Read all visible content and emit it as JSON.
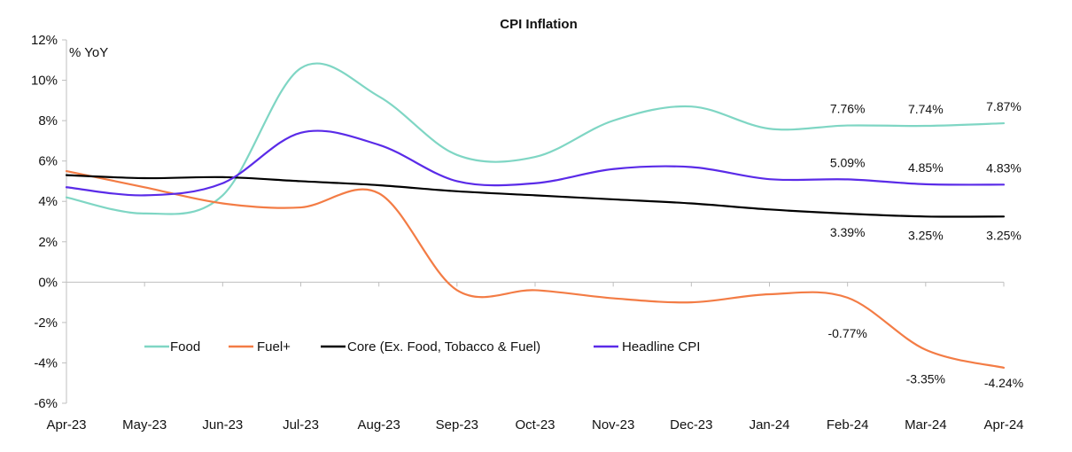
{
  "chart_data": {
    "type": "line",
    "title": "CPI Inflation",
    "ylabel_inside": "% YoY",
    "categories": [
      "Apr-23",
      "May-23",
      "Jun-23",
      "Jul-23",
      "Aug-23",
      "Sep-23",
      "Oct-23",
      "Nov-23",
      "Dec-23",
      "Jan-24",
      "Feb-24",
      "Mar-24",
      "Apr-24"
    ],
    "ylim": [
      -6,
      12
    ],
    "yticks": [
      -6,
      -4,
      -2,
      0,
      2,
      4,
      6,
      8,
      10,
      12
    ],
    "ytick_labels": [
      "-6%",
      "-4%",
      "-2%",
      "0%",
      "2%",
      "4%",
      "6%",
      "8%",
      "10%",
      "12%"
    ],
    "grid": false,
    "legend_position": "lower-left",
    "series": [
      {
        "name": "Food",
        "color": "#7fd6c4",
        "values": [
          4.2,
          3.4,
          4.3,
          10.6,
          9.2,
          6.3,
          6.2,
          8.0,
          8.7,
          7.6,
          7.76,
          7.74,
          7.87
        ],
        "labels": [
          null,
          null,
          null,
          null,
          null,
          null,
          null,
          null,
          null,
          null,
          "7.76%",
          "7.74%",
          "7.87%"
        ]
      },
      {
        "name": "Fuel+",
        "color": "#f37c45",
        "values": [
          5.5,
          4.7,
          3.9,
          3.7,
          4.4,
          -0.4,
          -0.4,
          -0.8,
          -1.0,
          -0.6,
          -0.77,
          -3.35,
          -4.24
        ],
        "labels": [
          null,
          null,
          null,
          null,
          null,
          null,
          null,
          null,
          null,
          null,
          "-0.77%",
          "-3.35%",
          "-4.24%"
        ]
      },
      {
        "name": "Core (Ex. Food, Tobacco & Fuel)",
        "color": "#000000",
        "values": [
          5.3,
          5.15,
          5.2,
          5.0,
          4.8,
          4.5,
          4.3,
          4.1,
          3.9,
          3.6,
          3.39,
          3.25,
          3.25
        ],
        "labels": [
          null,
          null,
          null,
          null,
          null,
          null,
          null,
          null,
          null,
          null,
          "3.39%",
          "3.25%",
          "3.25%"
        ]
      },
      {
        "name": "Headline CPI",
        "color": "#5a2be8",
        "values": [
          4.7,
          4.3,
          4.9,
          7.4,
          6.8,
          5.0,
          4.9,
          5.6,
          5.7,
          5.1,
          5.09,
          4.85,
          4.83
        ],
        "labels": [
          null,
          null,
          null,
          null,
          null,
          null,
          null,
          null,
          null,
          null,
          "5.09%",
          "4.85%",
          "4.83%"
        ]
      }
    ]
  }
}
